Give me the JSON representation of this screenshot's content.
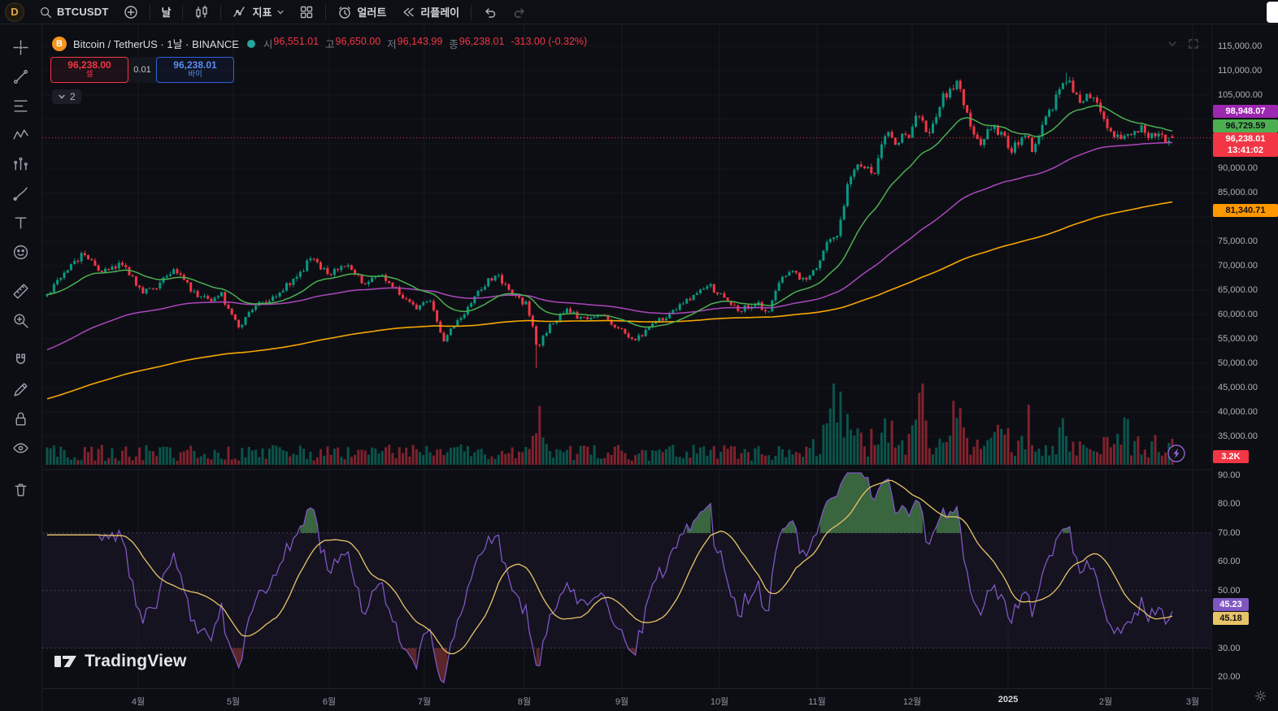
{
  "topbar": {
    "avatar": "D",
    "symbol": "BTCUSDT",
    "interval": "날",
    "indicators": "지표",
    "alerts": "얼러트",
    "replay": "리플레이"
  },
  "legend": {
    "title": "Bitcoin / TetherUS · 1날 · BINANCE",
    "ohlc": [
      {
        "k": "시",
        "v": "96,551.01"
      },
      {
        "k": "고",
        "v": "96,650.00"
      },
      {
        "k": "저",
        "v": "96,143.99"
      },
      {
        "k": "종",
        "v": "96,238.01"
      }
    ],
    "change": "-313.00 (-0.32%)",
    "collapsed_count": "2"
  },
  "trade": {
    "sell_price": "96,238.00",
    "sell_label": "셀",
    "spread": "0.01",
    "buy_price": "96,238.01",
    "buy_label": "바이"
  },
  "price_scale": {
    "ticks": [
      "115,000.00",
      "110,000.00",
      "105,000.00",
      "90,000.00",
      "85,000.00",
      "75,000.00",
      "70,000.00",
      "65,000.00",
      "60,000.00",
      "55,000.00",
      "50,000.00",
      "45,000.00",
      "40,000.00",
      "35,000.00"
    ],
    "tags": [
      {
        "name": "ma-mid-value",
        "text": "98,948.07",
        "type": "purple"
      },
      {
        "name": "ma-fast-value",
        "text": "96,729.59",
        "type": "green"
      },
      {
        "name": "last-price",
        "text": "96,238.01",
        "text2": "13:41:02",
        "type": "red"
      },
      {
        "name": "ma-slow-value",
        "text": "81,340.71",
        "type": "orange"
      },
      {
        "name": "volume-value",
        "text": "3.2K",
        "type": "red-small"
      },
      {
        "name": "rsi-value",
        "text": "45.23",
        "type": "rsi-purple"
      },
      {
        "name": "rsi-ma-value",
        "text": "45.18",
        "type": "rsi-yellow"
      }
    ]
  },
  "rsi_scale": {
    "ticks": [
      "90.00",
      "80.00",
      "70.00",
      "60.00",
      "50.00",
      "30.00",
      "20.00"
    ]
  },
  "time_axis": {
    "labels": [
      "4월",
      "5월",
      "6월",
      "7월",
      "8월",
      "9월",
      "10월",
      "11월",
      "12월",
      "2025",
      "2월",
      "3월"
    ]
  },
  "watermark": {
    "text": "TradingView"
  },
  "chart_data": {
    "type": "candlestick",
    "symbol": "BTCUSDT",
    "exchange": "BINANCE",
    "interval": "1D",
    "title": "Bitcoin / TetherUS · 1날 · BINANCE",
    "ohlc_last": {
      "open": 96551.01,
      "high": 96650.0,
      "low": 96143.99,
      "close": 96238.01,
      "change": -313.0,
      "change_pct": -0.32
    },
    "y_axis": {
      "min": 35000,
      "max": 115000,
      "tick_step": 5000
    },
    "x_axis_months": [
      "4월",
      "5월",
      "6월",
      "7월",
      "8월",
      "9월",
      "10월",
      "11월",
      "12월",
      "2025",
      "2월",
      "3월"
    ],
    "moving_averages": [
      {
        "name": "ma-fast",
        "color": "#4caf50",
        "last": 96729.59
      },
      {
        "name": "ma-mid",
        "color": "#ab47bc",
        "last": 98948.07
      },
      {
        "name": "ma-slow",
        "color": "#f7a600",
        "last": 81340.71
      }
    ],
    "volume_last_label": "3.2K",
    "rsi": {
      "last": 45.23,
      "ma_last": 45.18,
      "overbought": 70,
      "midline": 50,
      "oversold": 30,
      "scale": [
        20,
        90
      ]
    },
    "price_path": [
      [
        0.0,
        63500
      ],
      [
        0.012,
        67500
      ],
      [
        0.031,
        72600
      ],
      [
        0.05,
        68500
      ],
      [
        0.066,
        70300
      ],
      [
        0.085,
        64200
      ],
      [
        0.1,
        66300
      ],
      [
        0.113,
        69800
      ],
      [
        0.128,
        64800
      ],
      [
        0.143,
        62800
      ],
      [
        0.155,
        64300
      ],
      [
        0.163,
        59800
      ],
      [
        0.17,
        57400
      ],
      [
        0.185,
        61800
      ],
      [
        0.2,
        63600
      ],
      [
        0.218,
        66800
      ],
      [
        0.234,
        71200
      ],
      [
        0.252,
        68600
      ],
      [
        0.268,
        69700
      ],
      [
        0.282,
        66500
      ],
      [
        0.296,
        68300
      ],
      [
        0.312,
        64800
      ],
      [
        0.329,
        61200
      ],
      [
        0.34,
        62900
      ],
      [
        0.351,
        54600
      ],
      [
        0.363,
        57900
      ],
      [
        0.383,
        64400
      ],
      [
        0.398,
        68400
      ],
      [
        0.412,
        64600
      ],
      [
        0.427,
        61800
      ],
      [
        0.436,
        53500
      ],
      [
        0.449,
        58600
      ],
      [
        0.463,
        61000
      ],
      [
        0.478,
        58700
      ],
      [
        0.492,
        59600
      ],
      [
        0.506,
        57600
      ],
      [
        0.521,
        54300
      ],
      [
        0.538,
        58100
      ],
      [
        0.556,
        60600
      ],
      [
        0.573,
        63400
      ],
      [
        0.588,
        66000
      ],
      [
        0.6,
        63600
      ],
      [
        0.614,
        60900
      ],
      [
        0.629,
        62400
      ],
      [
        0.641,
        60700
      ],
      [
        0.652,
        66800
      ],
      [
        0.663,
        68700
      ],
      [
        0.674,
        66900
      ],
      [
        0.684,
        69800
      ],
      [
        0.694,
        74800
      ],
      [
        0.703,
        76400
      ],
      [
        0.713,
        88300
      ],
      [
        0.724,
        91200
      ],
      [
        0.734,
        88300
      ],
      [
        0.744,
        97600
      ],
      [
        0.754,
        95400
      ],
      [
        0.765,
        96800
      ],
      [
        0.776,
        101500
      ],
      [
        0.784,
        96300
      ],
      [
        0.796,
        104200
      ],
      [
        0.808,
        107800
      ],
      [
        0.82,
        99000
      ],
      [
        0.829,
        95200
      ],
      [
        0.841,
        98600
      ],
      [
        0.851,
        95800
      ],
      [
        0.858,
        93900
      ],
      [
        0.868,
        97300
      ],
      [
        0.877,
        93600
      ],
      [
        0.888,
        100200
      ],
      [
        0.898,
        104800
      ],
      [
        0.907,
        108800
      ],
      [
        0.917,
        103600
      ],
      [
        0.926,
        105100
      ],
      [
        0.936,
        102200
      ],
      [
        0.944,
        97600
      ],
      [
        0.953,
        96900
      ],
      [
        0.962,
        96400
      ],
      [
        0.971,
        98300
      ],
      [
        0.98,
        96700
      ],
      [
        0.989,
        96100
      ],
      [
        1.0,
        96238
      ]
    ],
    "volume_spikes": [
      [
        0.436,
        3.4,
        0.005
      ],
      [
        0.7,
        3.6,
        0.01
      ],
      [
        0.717,
        2.4,
        0.008
      ],
      [
        0.744,
        1.6,
        0.008
      ],
      [
        0.776,
        3.2,
        0.005
      ],
      [
        0.808,
        1.8,
        0.008
      ],
      [
        0.851,
        1.2,
        0.01
      ],
      [
        0.871,
        2.6,
        0.004
      ],
      [
        0.907,
        1.5,
        0.006
      ],
      [
        0.957,
        1.1,
        0.008
      ]
    ]
  }
}
